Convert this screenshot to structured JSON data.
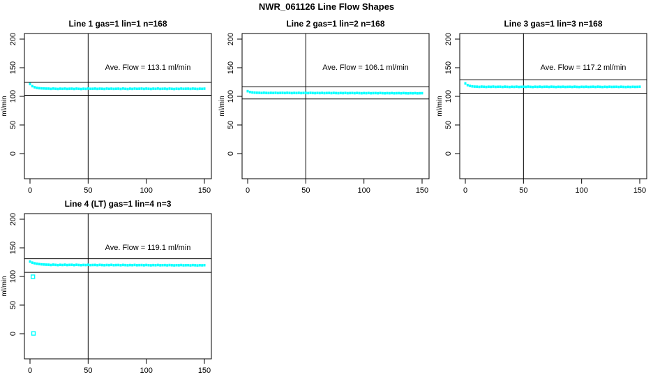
{
  "figure": {
    "title": "NWR_061126  Line Flow Shapes",
    "background": "#ffffff",
    "text_color": "#000000",
    "point_color": "#00ffff"
  },
  "chart_data": [
    {
      "id": "line1",
      "type": "scatter",
      "title": "Line 1 gas=1 lin=1 n=168",
      "annotation": "Ave. Flow =  113.1  ml/min",
      "ave_flow": 113.1,
      "n": 168,
      "xlabel": "",
      "ylabel": "ml/min",
      "x_ticks": [
        0,
        50,
        100,
        150
      ],
      "y_ticks": [
        0,
        50,
        100,
        150,
        200
      ],
      "xlim": [
        -5,
        156
      ],
      "ylim": [
        -44,
        210
      ],
      "grid": false,
      "legend": "none",
      "vline_x": 50,
      "hlines": [
        124.4,
        101.8
      ],
      "point_color": "#00ffff",
      "marker": "square",
      "band": {
        "x0": 0,
        "dx": 2,
        "y": [
          121.5,
          117.8,
          115.9,
          114.8,
          114.2,
          113.9,
          113.7,
          113.5,
          113.5,
          113.0,
          113.6,
          113.2,
          112.9,
          113.4,
          113.1,
          113.5,
          113.0,
          113.3,
          113.4,
          112.9,
          113.5,
          113.1,
          112.8,
          113.3,
          113.0,
          113.6,
          113.1,
          113.2,
          113.5,
          113.0,
          113.4,
          113.2,
          112.9,
          113.5,
          113.1,
          113.4,
          113.0,
          113.2,
          113.4,
          112.9,
          113.6,
          113.1,
          112.8,
          113.4,
          113.0,
          113.5,
          113.1,
          113.3,
          113.5,
          113.0,
          113.5,
          113.2,
          112.9,
          113.4,
          113.1,
          113.6,
          113.0,
          113.2,
          113.4,
          112.9,
          113.5,
          113.1,
          112.8,
          113.3,
          113.0,
          113.5,
          113.1,
          113.3,
          113.4,
          113.0,
          113.5,
          113.2,
          112.9,
          113.3,
          113.1,
          113.4
        ]
      },
      "outliers": []
    },
    {
      "id": "line2",
      "type": "scatter",
      "title": "Line 2 gas=1 lin=2 n=168",
      "annotation": "Ave. Flow =  106.1  ml/min",
      "ave_flow": 106.1,
      "n": 168,
      "xlabel": "",
      "ylabel": "ml/min",
      "x_ticks": [
        0,
        50,
        100,
        150
      ],
      "y_ticks": [
        0,
        50,
        100,
        150,
        200
      ],
      "xlim": [
        -5,
        156
      ],
      "ylim": [
        -44,
        210
      ],
      "grid": false,
      "legend": "none",
      "vline_x": 50,
      "hlines": [
        116.7,
        95.5
      ],
      "point_color": "#00ffff",
      "marker": "square",
      "band": {
        "x0": 0,
        "dx": 2,
        "y": [
          109.0,
          107.6,
          106.9,
          106.5,
          106.3,
          106.2,
          105.9,
          106.3,
          106.0,
          105.8,
          106.1,
          105.9,
          106.2,
          105.8,
          106.0,
          106.1,
          105.8,
          106.2,
          105.9,
          105.7,
          106.0,
          105.8,
          106.1,
          105.7,
          105.9,
          106.0,
          105.7,
          106.1,
          105.8,
          105.6,
          105.9,
          105.7,
          106.0,
          105.6,
          105.8,
          105.9,
          105.6,
          106.0,
          105.7,
          105.5,
          105.8,
          105.6,
          105.9,
          105.5,
          105.7,
          105.8,
          105.5,
          105.9,
          105.6,
          105.4,
          105.7,
          105.5,
          105.8,
          105.4,
          105.6,
          105.7,
          105.4,
          105.8,
          105.5,
          105.3,
          105.6,
          105.4,
          105.7,
          105.3,
          105.5,
          105.6,
          105.3,
          105.7,
          105.4,
          105.2,
          105.5,
          105.3,
          105.6,
          105.2,
          105.4,
          105.5
        ]
      },
      "outliers": []
    },
    {
      "id": "line3",
      "type": "scatter",
      "title": "Line 3 gas=1 lin=3 n=168",
      "annotation": "Ave. Flow =  117.2  ml/min",
      "ave_flow": 117.2,
      "n": 168,
      "xlabel": "",
      "ylabel": "ml/min",
      "x_ticks": [
        0,
        50,
        100,
        150
      ],
      "y_ticks": [
        0,
        50,
        100,
        150,
        200
      ],
      "xlim": [
        -5,
        156
      ],
      "ylim": [
        -44,
        210
      ],
      "grid": false,
      "legend": "none",
      "vline_x": 50,
      "hlines": [
        128.9,
        105.5
      ],
      "point_color": "#00ffff",
      "marker": "square",
      "band": {
        "x0": 0,
        "dx": 2,
        "y": [
          122.5,
          119.6,
          118.2,
          117.4,
          117.0,
          116.9,
          116.5,
          117.0,
          116.7,
          116.4,
          116.8,
          116.6,
          117.0,
          116.5,
          116.7,
          116.8,
          116.4,
          116.9,
          116.6,
          116.3,
          116.7,
          116.5,
          116.9,
          116.4,
          116.6,
          116.8,
          116.5,
          117.0,
          116.6,
          116.3,
          116.8,
          116.5,
          116.9,
          116.4,
          116.7,
          116.8,
          116.4,
          116.9,
          116.6,
          116.3,
          116.7,
          116.5,
          116.8,
          116.4,
          116.6,
          116.7,
          116.4,
          116.9,
          116.5,
          116.3,
          116.7,
          116.5,
          116.8,
          116.4,
          116.6,
          116.8,
          116.4,
          116.9,
          116.6,
          116.3,
          116.7,
          116.4,
          116.8,
          116.5,
          116.6,
          116.7,
          116.4,
          116.8,
          116.5,
          116.3,
          116.6,
          116.4,
          116.7,
          116.5,
          116.6,
          116.8
        ]
      },
      "outliers": []
    },
    {
      "id": "line4",
      "type": "scatter",
      "title": "Line 4 (LT) gas=1 lin=4 n=3",
      "annotation": "Ave. Flow =  119.1  ml/min",
      "ave_flow": 119.1,
      "n": 3,
      "xlabel": "",
      "ylabel": "ml/min",
      "x_ticks": [
        0,
        50,
        100,
        150
      ],
      "y_ticks": [
        0,
        50,
        100,
        150,
        200
      ],
      "xlim": [
        -5,
        156
      ],
      "ylim": [
        -44,
        210
      ],
      "grid": false,
      "legend": "none",
      "vline_x": 50,
      "hlines": [
        131.0,
        107.2
      ],
      "point_color": "#00ffff",
      "marker": "square",
      "band": {
        "x0": 0,
        "dx": 2,
        "y": [
          126.0,
          124.2,
          123.0,
          122.2,
          121.6,
          121.2,
          120.9,
          120.7,
          120.6,
          120.1,
          120.7,
          120.3,
          119.9,
          120.4,
          120.1,
          120.6,
          120.0,
          120.3,
          120.4,
          119.9,
          120.5,
          120.1,
          119.8,
          120.2,
          120.0,
          120.5,
          119.9,
          120.1,
          120.2,
          119.8,
          120.3,
          120.0,
          119.7,
          120.1,
          119.9,
          120.3,
          119.8,
          120.0,
          120.1,
          119.7,
          120.2,
          119.9,
          119.6,
          120.0,
          119.8,
          120.2,
          119.7,
          119.9,
          120.0,
          119.6,
          120.1,
          119.8,
          119.5,
          119.9,
          119.7,
          120.1,
          119.6,
          119.8,
          119.9,
          119.5,
          120.0,
          119.7,
          119.4,
          119.8,
          119.6,
          120.0,
          119.5,
          119.7,
          119.8,
          119.4,
          119.9,
          119.6,
          119.3,
          119.7,
          119.5,
          119.8
        ]
      },
      "outliers": [
        [
          2.5,
          99.5
        ],
        [
          3,
          0.5
        ]
      ]
    }
  ]
}
